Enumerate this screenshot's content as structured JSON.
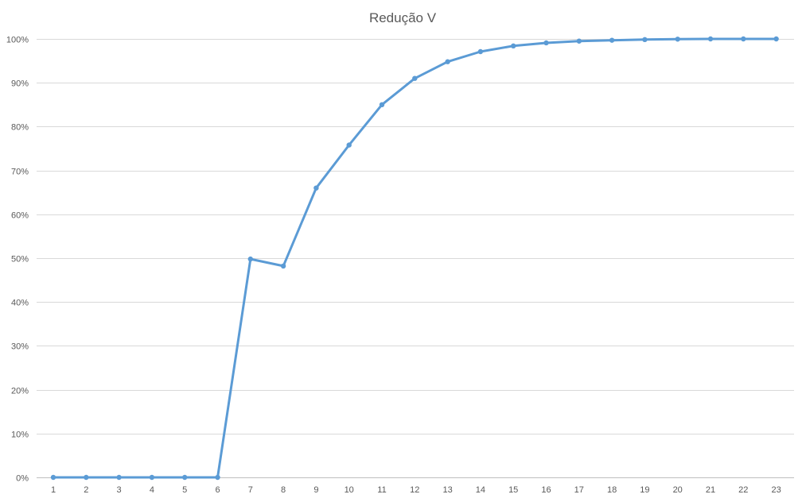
{
  "chart_data": {
    "type": "line",
    "title": "Redução V",
    "xlabel": "",
    "ylabel": "",
    "categories": [
      "1",
      "2",
      "3",
      "4",
      "5",
      "6",
      "7",
      "8",
      "9",
      "10",
      "11",
      "12",
      "13",
      "14",
      "15",
      "16",
      "17",
      "18",
      "19",
      "20",
      "21",
      "22",
      "23"
    ],
    "y_ticks": [
      "0%",
      "10%",
      "20%",
      "30%",
      "40%",
      "50%",
      "60%",
      "70%",
      "80%",
      "90%",
      "100%"
    ],
    "ylim": [
      0,
      100
    ],
    "y_unit": "%",
    "grid": true,
    "legend": "none",
    "series": [
      {
        "color": "#5b9bd5",
        "values": [
          0,
          0,
          0,
          0,
          0,
          0,
          49.8,
          48.2,
          66.0,
          75.8,
          85.0,
          91.0,
          94.8,
          97.1,
          98.4,
          99.1,
          99.5,
          99.7,
          99.85,
          99.95,
          100,
          100,
          100
        ]
      }
    ]
  }
}
